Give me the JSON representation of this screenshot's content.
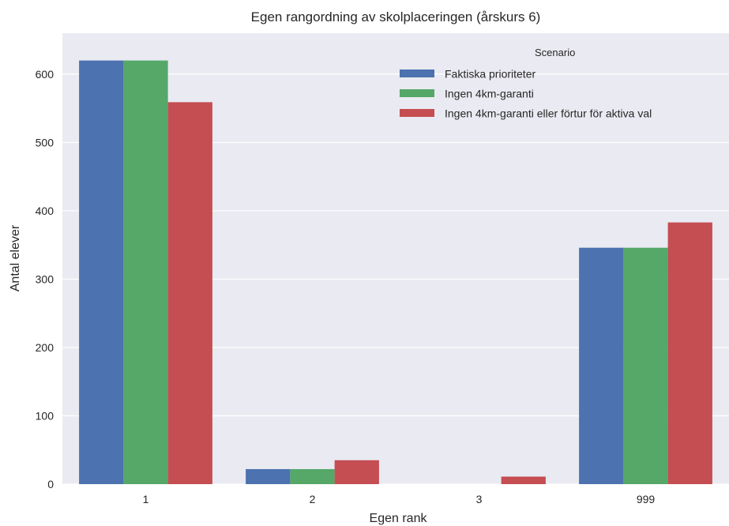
{
  "chart_data": {
    "type": "bar",
    "title": "Egen rangordning av skolplaceringen (årskurs 6)",
    "xlabel": "Egen rank",
    "ylabel": "Antal elever",
    "categories": [
      "1",
      "2",
      "3",
      "999"
    ],
    "ylim": [
      0,
      660
    ],
    "yticks": [
      0,
      100,
      200,
      300,
      400,
      500,
      600
    ],
    "grid": true,
    "legend": {
      "title": "Scenario",
      "placement": "top-right"
    },
    "series": [
      {
        "name": "Faktiska prioriteter",
        "color": "#4c72b0",
        "values": [
          620,
          22,
          0,
          346
        ]
      },
      {
        "name": "Ingen 4km-garanti",
        "color": "#55a868",
        "values": [
          620,
          22,
          0,
          346
        ]
      },
      {
        "name": "Ingen 4km-garanti eller förtur för aktiva val",
        "color": "#c44e52",
        "values": [
          559,
          35,
          11,
          383
        ]
      }
    ],
    "plot_background": "#eaeaf2",
    "grid_color": "#ffffff"
  }
}
